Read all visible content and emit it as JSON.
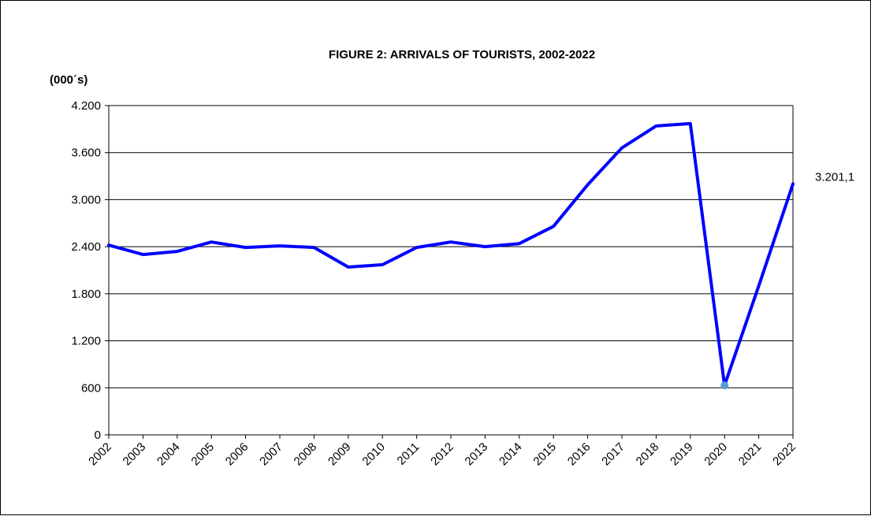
{
  "chart_data": {
    "type": "line",
    "title": "FIGURE 2: ARRIVALS OF TOURISTS, 2002-2022",
    "ylabel": "(000´s)",
    "xlabel": "",
    "ylim": [
      0,
      4200
    ],
    "y_ticks": [
      0,
      600,
      1200,
      1800,
      2400,
      3000,
      3600,
      4200
    ],
    "y_tick_labels": [
      "0",
      "600",
      "1.200",
      "1.800",
      "2.400",
      "3.000",
      "3.600",
      "4.200"
    ],
    "categories": [
      "2002",
      "2003",
      "2004",
      "2005",
      "2006",
      "2007",
      "2008",
      "2009",
      "2010",
      "2011",
      "2012",
      "2013",
      "2014",
      "2015",
      "2016",
      "2017",
      "2018",
      "2019",
      "2020",
      "2021",
      "2022"
    ],
    "series": [
      {
        "color": "#0000ff",
        "values": [
          2420,
          2300,
          2340,
          2460,
          2390,
          2410,
          2390,
          2140,
          2170,
          2390,
          2460,
          2400,
          2440,
          2660,
          3190,
          3660,
          3940,
          3970,
          631,
          1900,
          3201.1
        ]
      }
    ],
    "highlight_point": {
      "index": 18,
      "color": "#5b9bd5"
    },
    "data_labels": [
      {
        "index": 20,
        "text": "3.201,1"
      }
    ],
    "grid": true,
    "legend": "none"
  }
}
